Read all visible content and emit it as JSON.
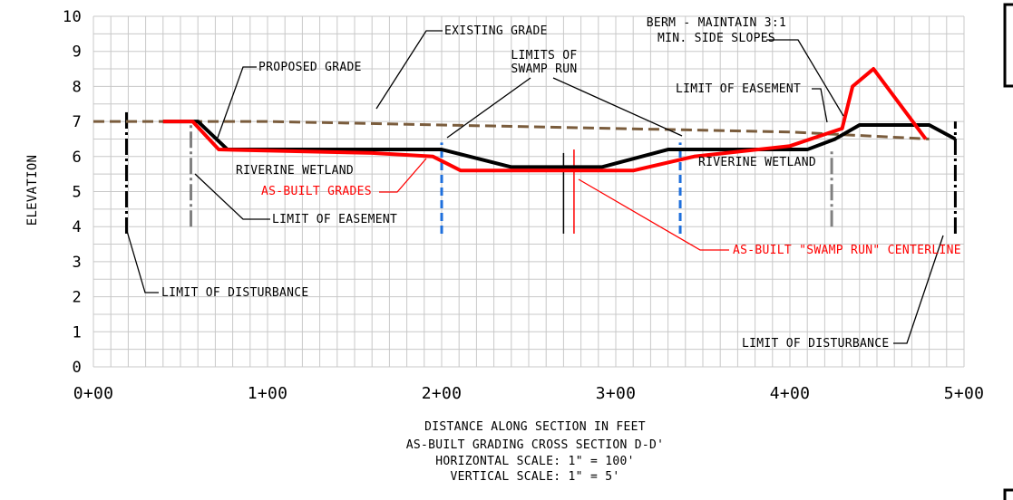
{
  "chart_data": {
    "type": "line",
    "xlabel": "DISTANCE ALONG SECTION IN FEET",
    "ylabel": "ELEVATION",
    "xlim": [
      0,
      500
    ],
    "ylim": [
      0,
      10
    ],
    "grid": true,
    "y_ticks": [
      "0",
      "1",
      "2",
      "3",
      "4",
      "5",
      "6",
      "7",
      "8",
      "9",
      "10"
    ],
    "x_ticks": [
      "0+00",
      "1+00",
      "2+00",
      "3+00",
      "4+00",
      "5+00"
    ],
    "series": [
      {
        "name": "EXISTING GRADE",
        "style": "dashed",
        "color": "#7a5c3c",
        "x": [
          0,
          100,
          200,
          300,
          400,
          480
        ],
        "y": [
          7.0,
          7.0,
          6.9,
          6.8,
          6.7,
          6.5
        ]
      },
      {
        "name": "PROPOSED GRADE",
        "style": "solid",
        "color": "#000000",
        "x": [
          40,
          60,
          77,
          200,
          240,
          292,
          330,
          337,
          410,
          426,
          440,
          480,
          495
        ],
        "y": [
          7.0,
          7.0,
          6.2,
          6.2,
          5.7,
          5.7,
          6.2,
          6.2,
          6.2,
          6.5,
          6.9,
          6.9,
          6.5
        ]
      },
      {
        "name": "AS-BUILT GRADES",
        "style": "solid",
        "color": "#ff0000",
        "x": [
          40,
          57,
          72,
          160,
          195,
          211,
          310,
          345,
          400,
          430,
          436,
          448,
          478
        ],
        "y": [
          7.0,
          7.0,
          6.2,
          6.1,
          6.0,
          5.6,
          5.6,
          6.0,
          6.3,
          6.8,
          8.0,
          8.5,
          6.5
        ]
      }
    ],
    "vertical_markers": [
      {
        "x": 19,
        "y": [
          3.8,
          7.3
        ],
        "color": "#000000",
        "style": "dashdot"
      },
      {
        "x": 56,
        "y": [
          4.0,
          7.0
        ],
        "color": "#808080",
        "style": "dashdot"
      },
      {
        "x": 200,
        "y": [
          3.8,
          6.4
        ],
        "color": "#1e6fdc",
        "style": "dashed"
      },
      {
        "x": 270,
        "y": [
          3.8,
          6.1
        ],
        "color": "#000000",
        "style": "solid"
      },
      {
        "x": 276,
        "y": [
          3.8,
          6.2
        ],
        "color": "#ff0000",
        "style": "solid"
      },
      {
        "x": 337,
        "y": [
          3.8,
          6.4
        ],
        "color": "#1e6fdc",
        "style": "dashed"
      },
      {
        "x": 424,
        "y": [
          4.0,
          6.2
        ],
        "color": "#808080",
        "style": "dashdot"
      },
      {
        "x": 495,
        "y": [
          3.8,
          7.0
        ],
        "color": "#000000",
        "style": "dashdot"
      }
    ],
    "annotations": [
      {
        "lines": [
          "EXISTING GRADE"
        ],
        "color": "black"
      },
      {
        "lines": [
          "PROPOSED GRADE"
        ],
        "color": "black"
      },
      {
        "lines": [
          "LIMITS OF",
          "SWAMP RUN"
        ],
        "color": "black"
      },
      {
        "lines": [
          "BERM - MAINTAIN 3:1",
          "MIN. SIDE SLOPES"
        ],
        "color": "black"
      },
      {
        "lines": [
          "LIMIT OF EASEMENT"
        ],
        "color": "black"
      },
      {
        "lines": [
          "LIMIT OF EASEMENT"
        ],
        "color": "black"
      },
      {
        "lines": [
          "RIVERINE WETLAND"
        ],
        "color": "black"
      },
      {
        "lines": [
          "RIVERINE WETLAND"
        ],
        "color": "black"
      },
      {
        "lines": [
          "AS-BUILT GRADES"
        ],
        "color": "red"
      },
      {
        "lines": [
          "AS-BUILT \"SWAMP RUN\" CENTERLINE"
        ],
        "color": "red"
      },
      {
        "lines": [
          "LIMIT OF DISTURBANCE"
        ],
        "color": "black"
      },
      {
        "lines": [
          "LIMIT OF DISTURBANCE"
        ],
        "color": "black"
      }
    ],
    "footer": [
      "DISTANCE ALONG SECTION IN FEET",
      "AS-BUILT GRADING CROSS SECTION D-D'",
      "HORIZONTAL SCALE: 1\" = 100'",
      "VERTICAL SCALE: 1\" = 5'"
    ]
  }
}
